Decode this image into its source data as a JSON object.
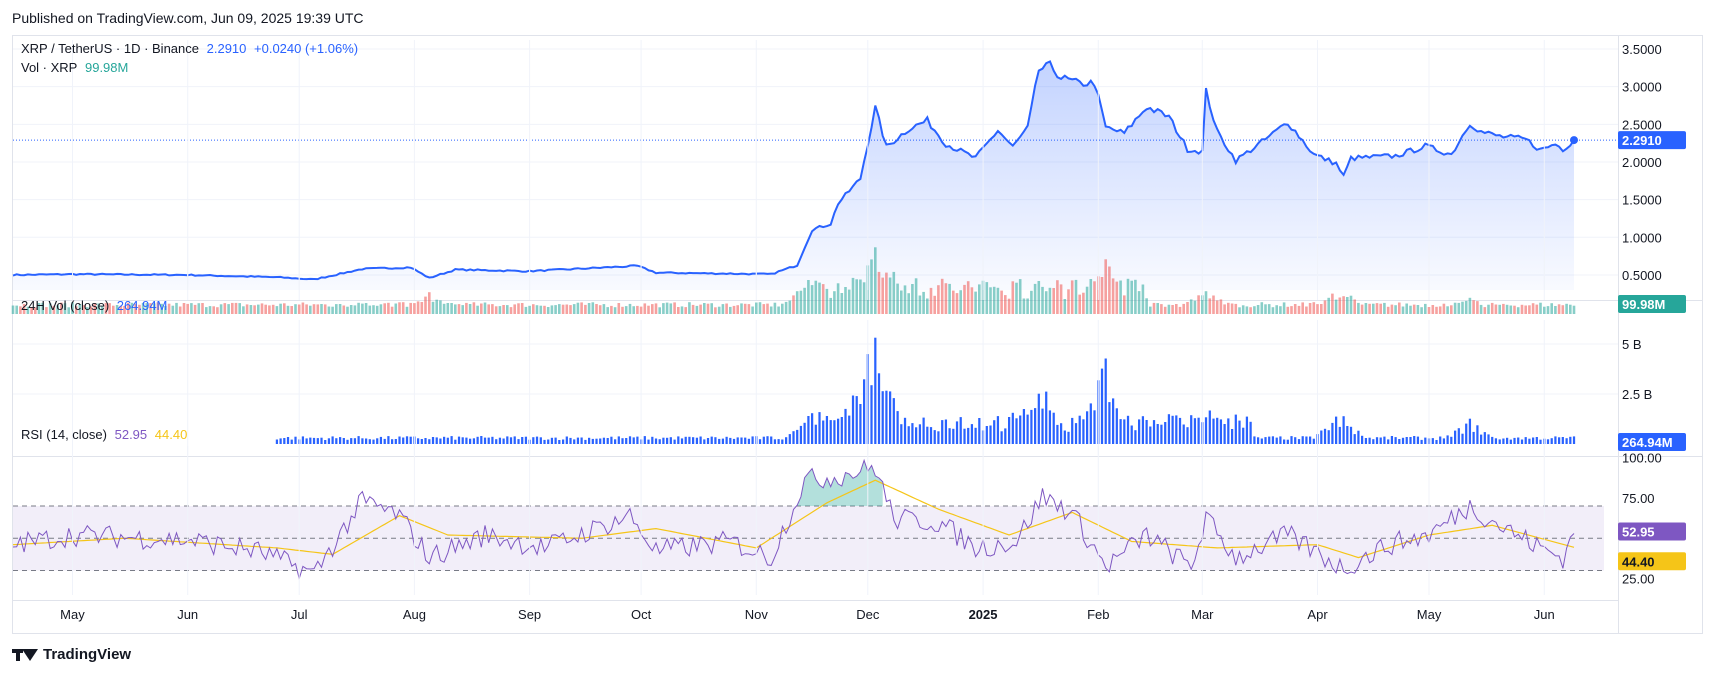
{
  "header": {
    "published": "Published on TradingView.com, Jun 09, 2025 19:39 UTC"
  },
  "footer": {
    "brand": "TradingView"
  },
  "colors": {
    "price_line": "#2962ff",
    "area_fill": "#2962ff",
    "vol_up": "#26a69a",
    "vol_down": "#ef5350",
    "vol24h": "#2962ff",
    "rsi_line": "#7e57c2",
    "rsi_ma": "#f5c518",
    "rsi_band": "#7e57c2",
    "vol_badge": "#26a69a"
  },
  "chart_data": [
    {
      "type": "line",
      "pane": "price",
      "title": "XRP / TetherUS · 1D · Binance",
      "legend": {
        "symbol": "XRP / TetherUS · 1D · Binance",
        "last": "2.2910",
        "change": "+0.0240 (+1.06%)"
      },
      "y_ticks": [
        "3.5000",
        "3.0000",
        "2.5000",
        "2.0000",
        "1.5000",
        "1.0000",
        "0.5000"
      ],
      "y_tick_values": [
        3.5,
        3.0,
        2.5,
        2.0,
        1.5,
        1.0,
        0.5
      ],
      "ylim": [
        0.3,
        3.62
      ],
      "last_value": "2.2910",
      "x_ticks": [
        "May",
        "Jun",
        "Jul",
        "Aug",
        "Sep",
        "Oct",
        "Nov",
        "Dec",
        "2025",
        "Feb",
        "Mar",
        "Apr",
        "May",
        "Jun"
      ],
      "anchors": [
        [
          "2024-04-15",
          0.5
        ],
        [
          "2024-05-01",
          0.51
        ],
        [
          "2024-06-01",
          0.5
        ],
        [
          "2024-06-25",
          0.47
        ],
        [
          "2024-07-05",
          0.44
        ],
        [
          "2024-07-18",
          0.58
        ],
        [
          "2024-07-31",
          0.6
        ],
        [
          "2024-08-05",
          0.46
        ],
        [
          "2024-08-12",
          0.57
        ],
        [
          "2024-09-01",
          0.55
        ],
        [
          "2024-09-30",
          0.62
        ],
        [
          "2024-10-05",
          0.53
        ],
        [
          "2024-11-05",
          0.51
        ],
        [
          "2024-11-12",
          0.63
        ],
        [
          "2024-11-16",
          1.1
        ],
        [
          "2024-11-21",
          1.18
        ],
        [
          "2024-11-23",
          1.45
        ],
        [
          "2024-11-29",
          1.78
        ],
        [
          "2024-12-03",
          2.72
        ],
        [
          "2024-12-06",
          2.2
        ],
        [
          "2024-12-12",
          2.44
        ],
        [
          "2024-12-17",
          2.55
        ],
        [
          "2024-12-22",
          2.24
        ],
        [
          "2024-12-30",
          2.05
        ],
        [
          "2025-01-05",
          2.42
        ],
        [
          "2025-01-09",
          2.2
        ],
        [
          "2025-01-13",
          2.45
        ],
        [
          "2025-01-16",
          3.22
        ],
        [
          "2025-01-19",
          3.28
        ],
        [
          "2025-01-22",
          3.12
        ],
        [
          "2025-01-27",
          3.04
        ],
        [
          "2025-01-31",
          3.05
        ],
        [
          "2025-02-03",
          2.46
        ],
        [
          "2025-02-08",
          2.38
        ],
        [
          "2025-02-14",
          2.73
        ],
        [
          "2025-02-20",
          2.6
        ],
        [
          "2025-02-25",
          2.17
        ],
        [
          "2025-03-01",
          2.14
        ],
        [
          "2025-03-02",
          2.94
        ],
        [
          "2025-03-05",
          2.4
        ],
        [
          "2025-03-10",
          2.02
        ],
        [
          "2025-03-18",
          2.3
        ],
        [
          "2025-03-24",
          2.53
        ],
        [
          "2025-03-31",
          2.1
        ],
        [
          "2025-04-06",
          1.98
        ],
        [
          "2025-04-08",
          1.81
        ],
        [
          "2025-04-10",
          2.05
        ],
        [
          "2025-04-22",
          2.08
        ],
        [
          "2025-04-30",
          2.21
        ],
        [
          "2025-05-07",
          2.1
        ],
        [
          "2025-05-12",
          2.52
        ],
        [
          "2025-05-15",
          2.4
        ],
        [
          "2025-05-20",
          2.34
        ],
        [
          "2025-05-27",
          2.3
        ],
        [
          "2025-05-31",
          2.16
        ],
        [
          "2025-06-04",
          2.24
        ],
        [
          "2025-06-06",
          2.17
        ],
        [
          "2025-06-09",
          2.291
        ]
      ]
    },
    {
      "type": "bar",
      "pane": "volume",
      "title": "Vol · XRP",
      "legend": {
        "label": "Vol · XRP",
        "value": "99.98M"
      },
      "last_value": "99.98M",
      "peaks": [
        [
          "2024-08-05",
          0.3
        ],
        [
          "2024-07-18",
          0.22
        ],
        [
          "2024-11-16",
          0.55
        ],
        [
          "2024-11-29",
          0.5
        ],
        [
          "2024-12-03",
          1.0
        ],
        [
          "2024-12-06",
          0.72
        ],
        [
          "2025-01-16",
          0.45
        ],
        [
          "2025-02-03",
          0.75
        ],
        [
          "2025-03-02",
          0.35
        ],
        [
          "2025-04-07",
          0.36
        ],
        [
          "2025-05-12",
          0.22
        ]
      ]
    },
    {
      "type": "bar",
      "pane": "vol24h",
      "title": "24H Vol (close)",
      "legend": {
        "label": "24H Vol (close)",
        "value": "264.94M"
      },
      "y_ticks": [
        "5 B",
        "2.5 B"
      ],
      "y_tick_values": [
        5.0,
        2.5
      ],
      "ylim": [
        0,
        6.2
      ],
      "last_value": "264.94M",
      "start": "2024-06-25",
      "peaks_b": [
        [
          "2024-11-16",
          1.6
        ],
        [
          "2024-11-29",
          3.3
        ],
        [
          "2024-12-03",
          6.0
        ],
        [
          "2024-12-06",
          3.0
        ],
        [
          "2025-01-16",
          3.4
        ],
        [
          "2025-02-03",
          4.3
        ],
        [
          "2025-03-02",
          2.1
        ],
        [
          "2025-04-07",
          1.6
        ],
        [
          "2025-05-12",
          1.3
        ]
      ]
    },
    {
      "type": "line",
      "pane": "rsi",
      "title": "RSI (14, close)",
      "legend": {
        "label": "RSI (14, close)",
        "rsi": "52.95",
        "ma": "44.40"
      },
      "y_ticks": [
        "100.00",
        "75.00",
        "25.00"
      ],
      "y_tick_values": [
        100,
        75,
        25
      ],
      "ylim": [
        21,
        101
      ],
      "bands": [
        70,
        50,
        30
      ],
      "last_rsi": "52.95",
      "last_ma": "44.40",
      "anchors": [
        [
          "2024-04-15",
          46
        ],
        [
          "2024-05-01",
          52
        ],
        [
          "2024-06-01",
          49
        ],
        [
          "2024-06-20",
          42
        ],
        [
          "2024-07-05",
          28
        ],
        [
          "2024-07-18",
          73
        ],
        [
          "2024-07-28",
          64
        ],
        [
          "2024-08-05",
          38
        ],
        [
          "2024-08-20",
          52
        ],
        [
          "2024-09-05",
          44
        ],
        [
          "2024-09-28",
          64
        ],
        [
          "2024-10-05",
          42
        ],
        [
          "2024-10-25",
          48
        ],
        [
          "2024-11-05",
          38
        ],
        [
          "2024-11-14",
          86
        ],
        [
          "2024-11-22",
          88
        ],
        [
          "2024-12-03",
          94
        ],
        [
          "2024-12-08",
          62
        ],
        [
          "2024-12-20",
          60
        ],
        [
          "2024-12-30",
          44
        ],
        [
          "2025-01-10",
          48
        ],
        [
          "2025-01-17",
          76
        ],
        [
          "2025-01-25",
          66
        ],
        [
          "2025-02-03",
          32
        ],
        [
          "2025-02-14",
          52
        ],
        [
          "2025-02-26",
          32
        ],
        [
          "2025-03-02",
          62
        ],
        [
          "2025-03-10",
          38
        ],
        [
          "2025-03-24",
          52
        ],
        [
          "2025-04-08",
          31
        ],
        [
          "2025-04-20",
          46
        ],
        [
          "2025-05-01",
          52
        ],
        [
          "2025-05-12",
          70
        ],
        [
          "2025-05-20",
          58
        ],
        [
          "2025-05-31",
          44
        ],
        [
          "2025-06-06",
          38
        ],
        [
          "2025-06-09",
          52.95
        ]
      ],
      "ma_anchors": [
        [
          "2024-04-15",
          46
        ],
        [
          "2024-05-15",
          50
        ],
        [
          "2024-06-25",
          44
        ],
        [
          "2024-07-10",
          40
        ],
        [
          "2024-07-28",
          64
        ],
        [
          "2024-08-10",
          52
        ],
        [
          "2024-09-15",
          50
        ],
        [
          "2024-10-05",
          56
        ],
        [
          "2024-11-01",
          44
        ],
        [
          "2024-11-20",
          72
        ],
        [
          "2024-12-03",
          86
        ],
        [
          "2024-12-20",
          68
        ],
        [
          "2025-01-08",
          52
        ],
        [
          "2025-01-25",
          66
        ],
        [
          "2025-02-10",
          48
        ],
        [
          "2025-03-05",
          44
        ],
        [
          "2025-04-01",
          46
        ],
        [
          "2025-04-12",
          38
        ],
        [
          "2025-05-01",
          52
        ],
        [
          "2025-05-18",
          58
        ],
        [
          "2025-06-09",
          44.4
        ]
      ]
    }
  ]
}
